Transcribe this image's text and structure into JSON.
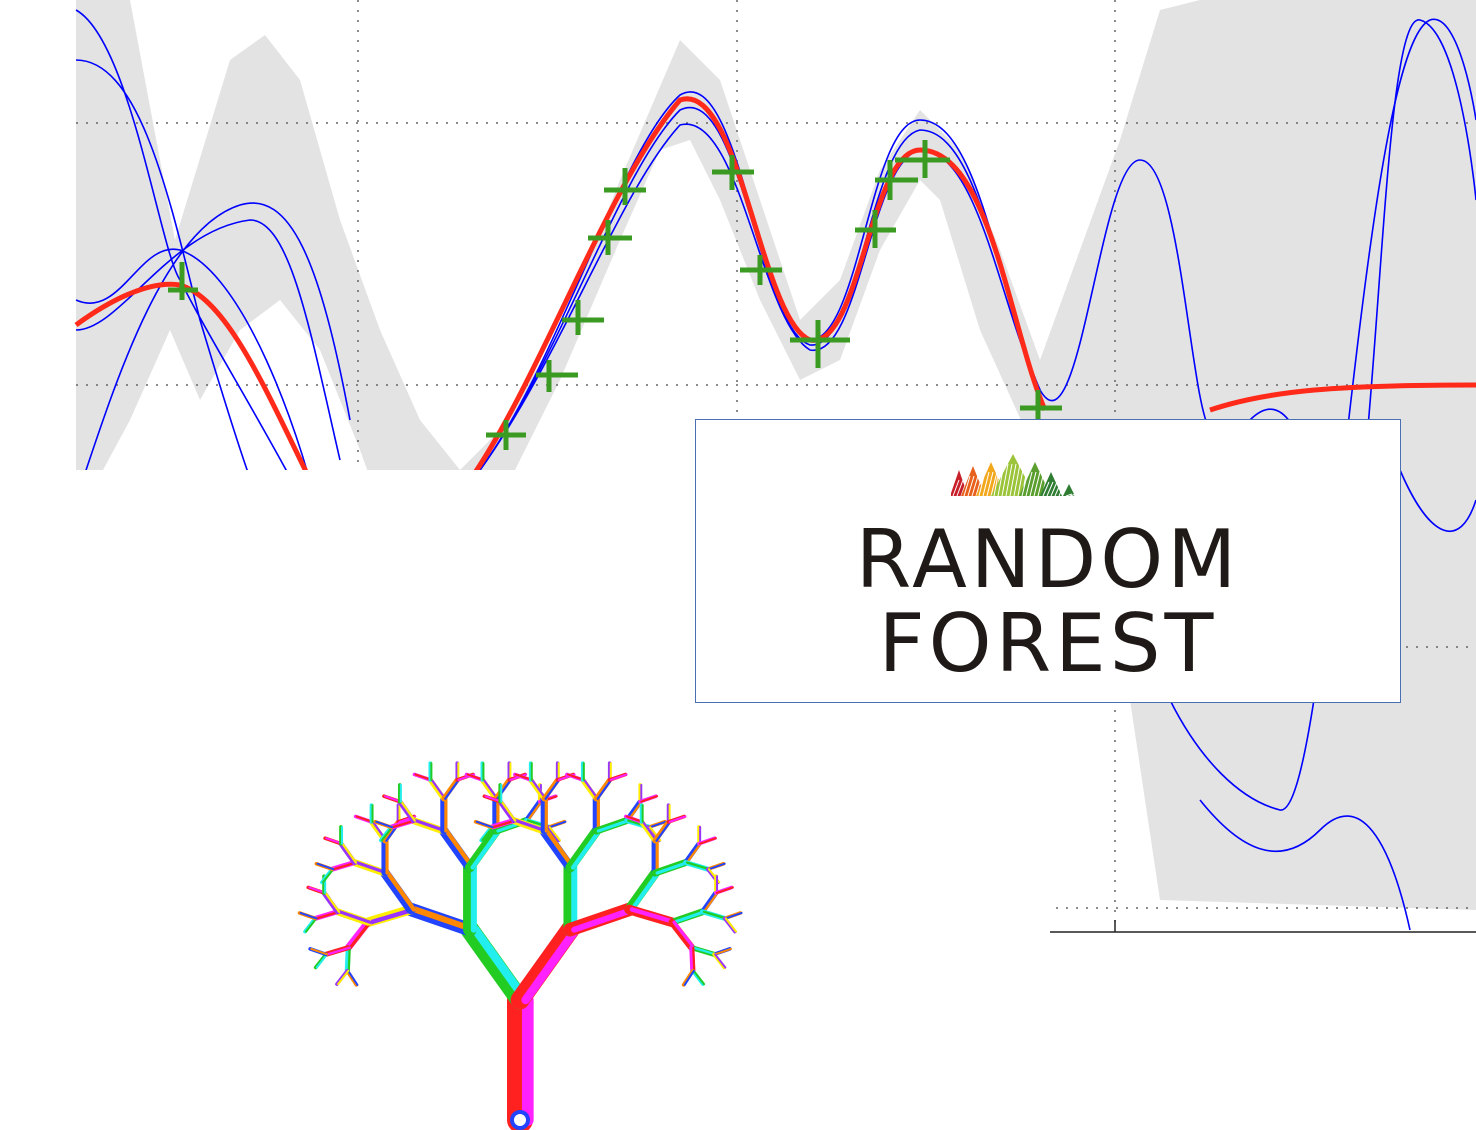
{
  "logo": {
    "line1": "RANDOM",
    "line2": "FOREST",
    "border_color": "#4a6fb5",
    "text_color": "#1f1a17",
    "mark_colors": [
      "#c8202a",
      "#e8601c",
      "#f2a81c",
      "#9cc43a",
      "#5a9e2e",
      "#2f7d32"
    ]
  },
  "plot": {
    "band_color": "#e3e3e3",
    "sample_color": "#0000ff",
    "mean_color": "#ff2a1a",
    "observation_color": "#3a9a22",
    "grid": true
  },
  "tree": {
    "branch_colors": [
      "#ff2020",
      "#22cc22",
      "#2244ff",
      "#ffee00",
      "#ff22ff",
      "#22eeee",
      "#ff8800",
      "#9933ff"
    ]
  }
}
